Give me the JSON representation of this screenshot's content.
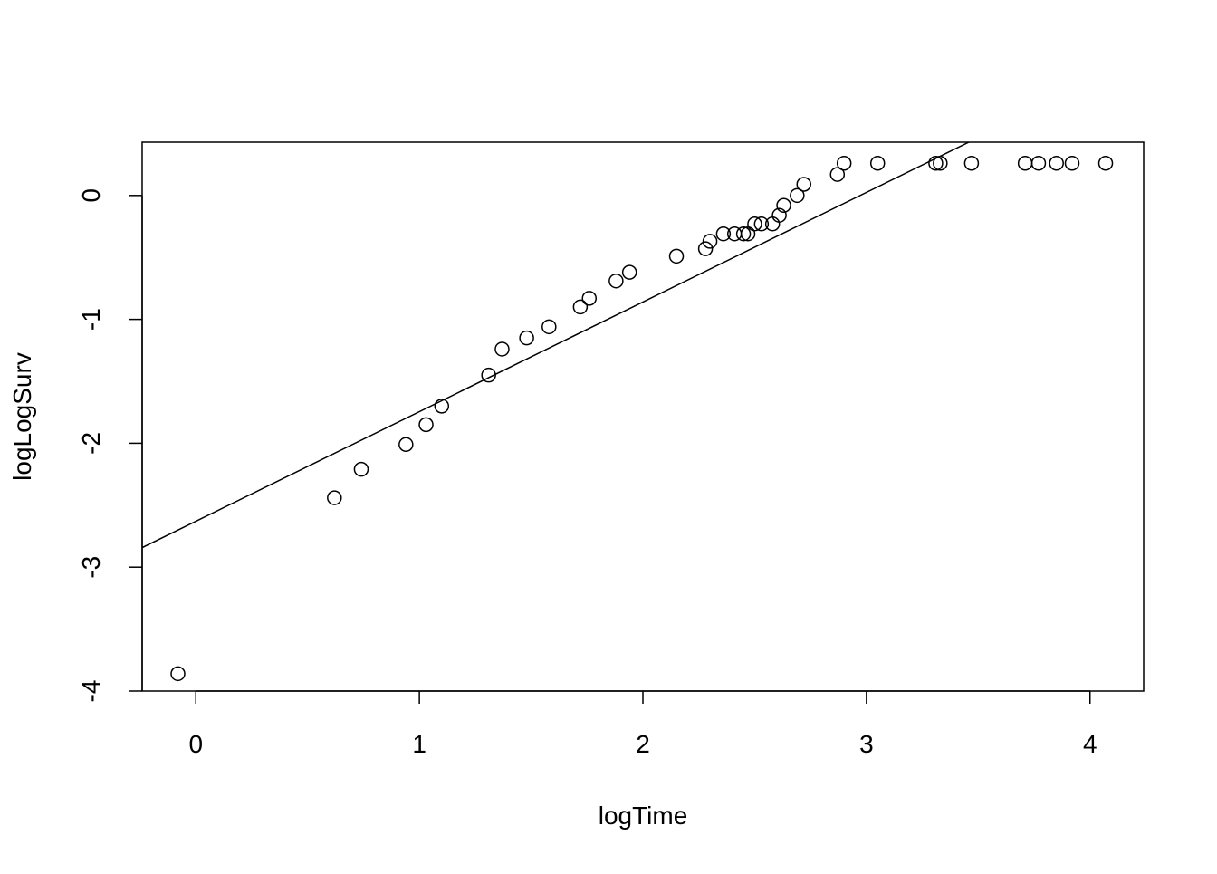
{
  "chart_data": {
    "type": "scatter",
    "title": "",
    "xlabel": "logTime",
    "ylabel": "logLogSurv",
    "xlim": [
      -0.24,
      4.24
    ],
    "ylim": [
      -4.0,
      0.43
    ],
    "x_ticks": [
      0,
      1,
      2,
      3,
      4
    ],
    "x_tick_labels": [
      "0",
      "1",
      "2",
      "3",
      "4"
    ],
    "y_ticks": [
      -4,
      -3,
      -2,
      -1,
      0
    ],
    "y_tick_labels": [
      "-4",
      "-3",
      "-2",
      "-1",
      "0"
    ],
    "grid": false,
    "legend": "none",
    "colors": {
      "points": "#000000",
      "line": "#000000",
      "frame": "#000000"
    },
    "series": [
      {
        "kind": "points",
        "x": [
          -0.08,
          0.62,
          0.74,
          0.94,
          1.03,
          1.1,
          1.31,
          1.37,
          1.48,
          1.58,
          1.72,
          1.76,
          1.88,
          1.94,
          2.15,
          2.28,
          2.3,
          2.36,
          2.41,
          2.45,
          2.47,
          2.5,
          2.53,
          2.58,
          2.61,
          2.63,
          2.69,
          2.72,
          2.87,
          2.9,
          3.05,
          3.31,
          3.33,
          3.47,
          3.71,
          3.77,
          3.85,
          3.92,
          4.07
        ],
        "y": [
          -3.86,
          -2.44,
          -2.21,
          -2.01,
          -1.85,
          -1.7,
          -1.45,
          -1.24,
          -1.15,
          -1.06,
          -0.9,
          -0.83,
          -0.69,
          -0.62,
          -0.49,
          -0.43,
          -0.37,
          -0.31,
          -0.31,
          -0.31,
          -0.31,
          -0.23,
          -0.23,
          -0.23,
          -0.16,
          -0.08,
          0.0,
          0.09,
          0.17,
          0.26,
          0.26,
          0.26,
          0.26,
          0.26,
          0.26,
          0.26,
          0.26,
          0.26,
          0.26
        ]
      },
      {
        "kind": "line",
        "intercept": -2.63,
        "slope": 0.885
      }
    ]
  }
}
